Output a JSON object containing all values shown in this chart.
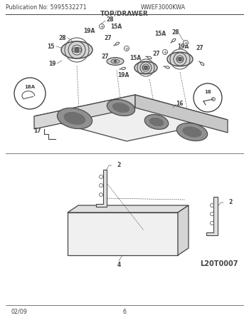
{
  "title_pub": "Publication No: 5995532271",
  "title_model": "WWEF3000KWA",
  "title_section": "TOP/DRAWER",
  "footer_date": "02/09",
  "footer_page": "6",
  "diagram_id": "L20T0007",
  "bg_color": "#ffffff",
  "lc": "#444444",
  "lc_light": "#999999",
  "gray_fill": "#e5e5e5",
  "gray_mid": "#cccccc",
  "gray_dark": "#aaaaaa",
  "gray_hole": "#b0b0b0",
  "fs_label": 5.5,
  "fs_header": 5.8,
  "fs_title": 6.5,
  "fs_diag_id": 7.0
}
